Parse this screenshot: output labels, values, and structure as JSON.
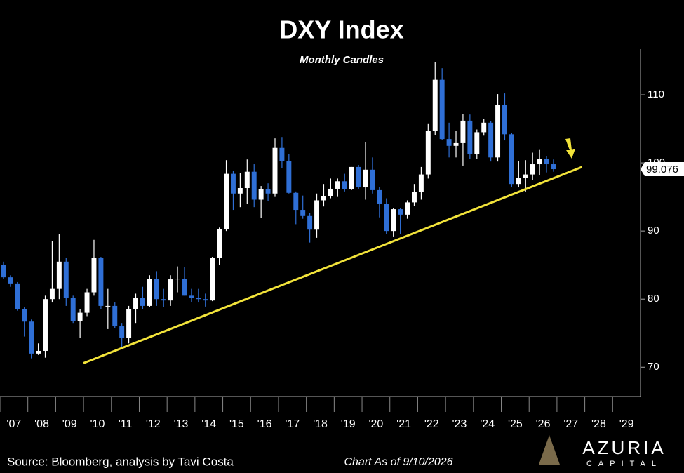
{
  "chart_data": {
    "type": "candlestick",
    "title": "DXY Index",
    "subtitle": "Monthly Candles",
    "x": [
      2007.125,
      2007.375,
      2007.625,
      2007.875,
      2008.125,
      2008.375,
      2008.625,
      2008.875,
      2009.125,
      2009.375,
      2009.625,
      2009.875,
      2010.125,
      2010.375,
      2010.625,
      2010.875,
      2011.125,
      2011.375,
      2011.625,
      2011.875,
      2012.125,
      2012.375,
      2012.625,
      2012.875,
      2013.125,
      2013.375,
      2013.625,
      2013.875,
      2014.125,
      2014.375,
      2014.625,
      2014.875,
      2015.125,
      2015.375,
      2015.625,
      2015.875,
      2016.125,
      2016.375,
      2016.625,
      2016.875,
      2017.125,
      2017.375,
      2017.625,
      2017.875,
      2018.125,
      2018.375,
      2018.625,
      2018.875,
      2019.125,
      2019.375,
      2019.625,
      2019.875,
      2020.125,
      2020.375,
      2020.625,
      2020.875,
      2021.125,
      2021.375,
      2021.625,
      2021.875,
      2022.125,
      2022.375,
      2022.625,
      2022.875,
      2023.125,
      2023.375,
      2023.625,
      2023.875,
      2024.125,
      2024.375,
      2024.625,
      2024.875,
      2025.125,
      2025.375,
      2025.625,
      2025.875,
      2026.125,
      2026.375,
      2026.625,
      2026.875
    ],
    "open": [
      85,
      83.2,
      82.3,
      78.5,
      76.7,
      72,
      72.4,
      80,
      81.5,
      85.5,
      80.2,
      76.8,
      78,
      81,
      86,
      79,
      79,
      76,
      74.3,
      78.5,
      80.2,
      79,
      83,
      80,
      79.8,
      82.9,
      83,
      80.5,
      80.2,
      80,
      79.8,
      86,
      90.3,
      98.4,
      95.5,
      96.3,
      98.7,
      94.6,
      96.1,
      95.5,
      102.2,
      100.3,
      95.6,
      93.1,
      92.2,
      90.2,
      94.5,
      95.1,
      96.2,
      97.3,
      96.1,
      99.4,
      96.4,
      99,
      96,
      94,
      90,
      93.2,
      92.4,
      94.2,
      95.7,
      98.3,
      104.7,
      112.2,
      103.5,
      102.5,
      102.9,
      106.2,
      101.3,
      104.5,
      105.9,
      100.8,
      108.5,
      104.2,
      96.9,
      97.8,
      98.3,
      99.8,
      100.6,
      99.8
    ],
    "high": [
      85.5,
      83.5,
      82.5,
      78.8,
      77,
      73.5,
      80.5,
      88.5,
      89.6,
      86,
      80.5,
      78.5,
      81.5,
      88.7,
      86.2,
      81.5,
      79.5,
      76.5,
      79,
      80.8,
      81.8,
      83.5,
      84.1,
      81.5,
      83.5,
      84.8,
      84.7,
      81.5,
      81.5,
      80.8,
      86.2,
      90.5,
      100.4,
      98.8,
      98.5,
      100.5,
      99.8,
      96.6,
      97,
      103.6,
      103.8,
      101.3,
      95.8,
      95.2,
      92.6,
      95.5,
      96.9,
      97.7,
      97.7,
      98.4,
      99.4,
      99.7,
      103,
      100.8,
      96.5,
      94.8,
      93.4,
      93.4,
      94.5,
      96.9,
      99.4,
      105.8,
      114.8,
      113.9,
      105.9,
      104.7,
      107.2,
      107.1,
      104.9,
      106.5,
      106.1,
      110.1,
      110.2,
      104.4,
      100.3,
      100.4,
      101.5,
      101.9,
      101,
      100.5
    ],
    "low": [
      83,
      81.8,
      78.3,
      74.5,
      71.3,
      71.8,
      71.4,
      79.5,
      80,
      79,
      76.5,
      74.3,
      77.5,
      80.5,
      78.5,
      75.6,
      75.7,
      72.7,
      73.5,
      76.5,
      78.5,
      78.8,
      79,
      78.8,
      79,
      81,
      80.5,
      79.6,
      79.5,
      78.9,
      79.7,
      85,
      90,
      93.1,
      93.5,
      94,
      93.5,
      91.9,
      94.4,
      95,
      99.2,
      95.5,
      91,
      91.8,
      88.3,
      89,
      93.6,
      94.8,
      95,
      95.8,
      96,
      96.2,
      94.6,
      95.5,
      92,
      89.5,
      89.2,
      89.5,
      91.8,
      93.7,
      94.6,
      97.7,
      104.1,
      103.4,
      100.8,
      100.8,
      99.6,
      100.6,
      100.6,
      104,
      100.2,
      100.2,
      103.3,
      96.4,
      96.4,
      95.8,
      97.5,
      98.2,
      98.6,
      98.7
    ],
    "close": [
      83.2,
      82.3,
      78.5,
      76.7,
      72,
      72.4,
      80,
      81.5,
      85.5,
      80.2,
      76.8,
      78,
      81,
      86,
      79,
      79,
      76,
      74.3,
      78.5,
      80.2,
      79,
      83,
      80,
      79.8,
      82.9,
      83,
      80.5,
      80.2,
      80,
      79.8,
      86,
      90.3,
      98.4,
      95.5,
      96.3,
      98.7,
      94.6,
      96.1,
      95.5,
      102.2,
      100.3,
      95.6,
      93.1,
      92.2,
      90.2,
      94.5,
      95.1,
      96.2,
      97.3,
      96.1,
      99.4,
      96.4,
      99,
      96,
      94,
      90,
      93.2,
      92.4,
      94.2,
      95.7,
      98.3,
      104.7,
      112.2,
      103.5,
      102.5,
      102.9,
      106.2,
      101.3,
      104.5,
      105.9,
      100.8,
      108.5,
      104.2,
      96.9,
      97.8,
      98.3,
      99.8,
      100.6,
      99.8,
      99.076
    ],
    "up_color": "#ffffff",
    "down_color": "#2f6fd6",
    "ylim": [
      65.7,
      116.7
    ],
    "yticks": [
      70,
      80,
      90,
      100,
      110
    ],
    "xlim": [
      2007,
      2030
    ],
    "xticks": [
      {
        "value": 2007,
        "label": "'07"
      },
      {
        "value": 2008,
        "label": "'08"
      },
      {
        "value": 2009,
        "label": "'09"
      },
      {
        "value": 2010,
        "label": "'10"
      },
      {
        "value": 2011,
        "label": "'11"
      },
      {
        "value": 2012,
        "label": "'12"
      },
      {
        "value": 2013,
        "label": "'13"
      },
      {
        "value": 2014,
        "label": "'14"
      },
      {
        "value": 2015,
        "label": "'15"
      },
      {
        "value": 2016,
        "label": "'16"
      },
      {
        "value": 2017,
        "label": "'17"
      },
      {
        "value": 2018,
        "label": "'18"
      },
      {
        "value": 2019,
        "label": "'19"
      },
      {
        "value": 2020,
        "label": "'20"
      },
      {
        "value": 2021,
        "label": "'21"
      },
      {
        "value": 2022,
        "label": "'22"
      },
      {
        "value": 2023,
        "label": "'23"
      },
      {
        "value": 2024,
        "label": "'24"
      },
      {
        "value": 2025,
        "label": "'25"
      },
      {
        "value": 2026,
        "label": "'26"
      },
      {
        "value": 2027,
        "label": "'27"
      },
      {
        "value": 2028,
        "label": "'28"
      },
      {
        "value": 2029,
        "label": "'29"
      }
    ],
    "trendline": {
      "x": [
        2010,
        2027.9
      ],
      "y": [
        70.6,
        99.4
      ],
      "color": "#f2e33a"
    },
    "grid": false,
    "source": "Source: Bloomberg, analysis by Tavi Costa",
    "note": "Chart As of 9/10/2026",
    "logo": {
      "name": "AZURIA",
      "sub": "CAPITAL"
    }
  }
}
